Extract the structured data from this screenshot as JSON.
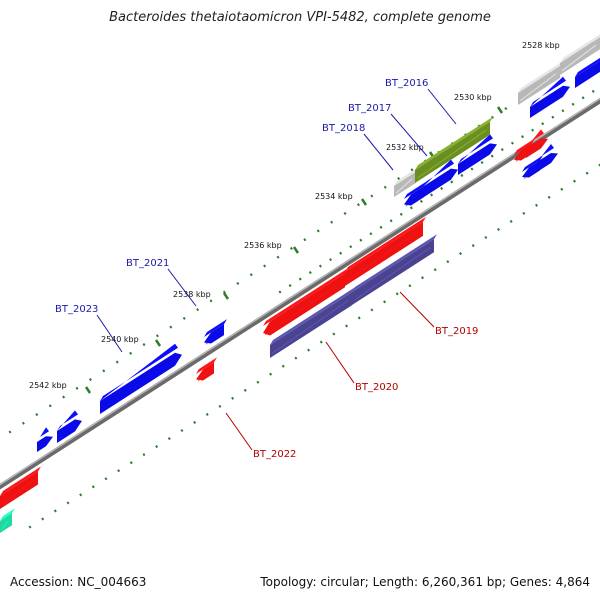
{
  "title": "Bacteroides thetaiotaomicron VPI-5482, complete genome",
  "footer": {
    "accession": "Accession: NC_004663",
    "summary": "Topology: circular; Length: 6,260,361 bp; Genes: 4,864"
  },
  "colors": {
    "backbone": "#8c8c8c",
    "tick": "#2e7d2e",
    "blue": "#0a0ae6",
    "red": "#ee1111",
    "grey": "#b8b8b8",
    "olive": "#6b8e23",
    "purple": "#4a4490",
    "teal": "#1fd9a0",
    "label_blue": "#1a1aa8",
    "label_red": "#b30000"
  },
  "ticks": [
    {
      "label": "2528 kbp"
    },
    {
      "label": "2530 kbp"
    },
    {
      "label": "2532 kbp"
    },
    {
      "label": "2534 kbp"
    },
    {
      "label": "2536 kbp"
    },
    {
      "label": "2538 kbp"
    },
    {
      "label": "2540 kbp"
    },
    {
      "label": "2542 kbp"
    }
  ],
  "gene_labels": [
    {
      "id": "BT_2016",
      "color": "blue"
    },
    {
      "id": "BT_2017",
      "color": "blue"
    },
    {
      "id": "BT_2018",
      "color": "blue"
    },
    {
      "id": "BT_2021",
      "color": "blue"
    },
    {
      "id": "BT_2023",
      "color": "blue"
    },
    {
      "id": "BT_2019",
      "color": "red"
    },
    {
      "id": "BT_2020",
      "color": "red"
    },
    {
      "id": "BT_2022",
      "color": "red"
    }
  ]
}
